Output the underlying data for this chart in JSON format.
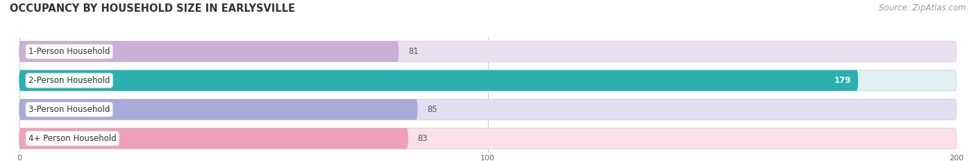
{
  "title": "OCCUPANCY BY HOUSEHOLD SIZE IN EARLYSVILLE",
  "source": "Source: ZipAtlas.com",
  "categories": [
    "1-Person Household",
    "2-Person Household",
    "3-Person Household",
    "4+ Person Household"
  ],
  "values": [
    81,
    179,
    85,
    83
  ],
  "bar_colors": [
    "#c9b0d5",
    "#2ab0b0",
    "#aaaad8",
    "#f0a0bb"
  ],
  "bar_bg_colors": [
    "#e8e0ef",
    "#dff0f0",
    "#e0e0f2",
    "#fce0e8"
  ],
  "xlim": [
    -2,
    200
  ],
  "xticks": [
    0,
    100,
    200
  ],
  "title_fontsize": 10.5,
  "source_fontsize": 8.5,
  "label_fontsize": 8.5,
  "value_fontsize": 8.5
}
